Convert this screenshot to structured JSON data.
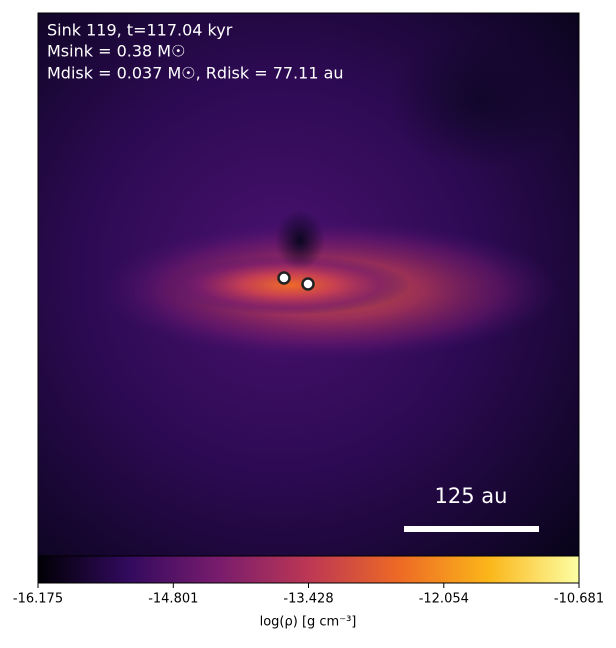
{
  "chart_data": {
    "type": "image",
    "annotations": [
      "Sink 119, t=117.04 kyr",
      "Msink = 0.38 M☉",
      "Mdisk = 0.037 M☉, Rdisk = 77.11 au"
    ],
    "scale_bar_label": "125 au",
    "colorbar_label": "log(ρ) [g cm⁻³]",
    "clim": [
      -16.175,
      -10.681
    ],
    "cticks": [
      -16.175,
      -14.801,
      -13.428,
      -12.054,
      -10.681
    ],
    "colormap": [
      "#000004",
      "#320a5e",
      "#781c6d",
      "#bc3754",
      "#ed6925",
      "#fbb61a",
      "#fcffa4"
    ]
  }
}
